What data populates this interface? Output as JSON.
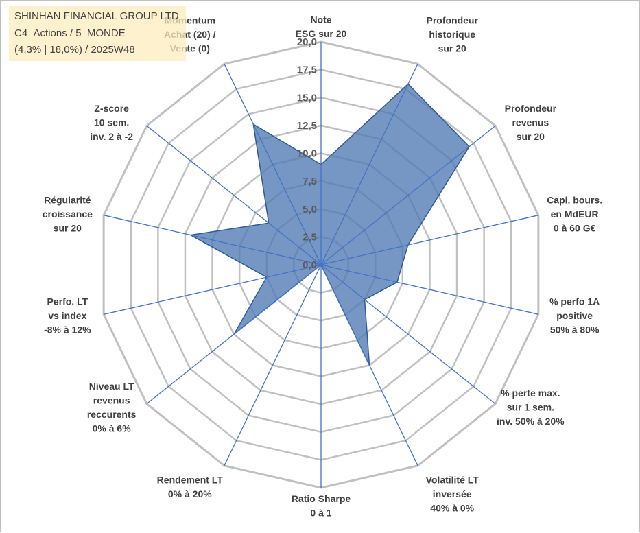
{
  "header": {
    "line1": "SHINHAN FINANCIAL GROUP LTD",
    "line2": "C4_Actions / 5_MONDE",
    "line3": "(4,3% | 18,0%) / 2025W48"
  },
  "colors": {
    "grid": "#c0c0c0",
    "spokes": "#4472c4",
    "fill": "#4f7ab3",
    "stroke": "#2e5a96",
    "label": "#404040",
    "tick": "#595959"
  },
  "chart_data": {
    "type": "radar",
    "title": "",
    "rmin": 0,
    "rmax": 20,
    "step": 2.5,
    "ticks": [
      "0,0",
      "2,5",
      "5,0",
      "7,5",
      "10,0",
      "12,5",
      "15,0",
      "17,5",
      "20,0"
    ],
    "axes": [
      {
        "lines": [
          "Note",
          "ESG sur 20"
        ],
        "value": 9.0
      },
      {
        "lines": [
          "Profondeur",
          "historique",
          "sur 20"
        ],
        "value": 18.0
      },
      {
        "lines": [
          "Profondeur",
          "revenus",
          "sur 20"
        ],
        "value": 17.0
      },
      {
        "lines": [
          "Capi. bours.",
          "en MdEUR",
          "0 à 60 G€"
        ],
        "value": 8.0
      },
      {
        "lines": [
          "% perfo 1A",
          "positive",
          "50% à 80%"
        ],
        "value": 7.0
      },
      {
        "lines": [
          "% perte max.",
          "sur 1 sem.",
          "inv. 50% à 20%"
        ],
        "value": 5.0
      },
      {
        "lines": [
          "Volatilité LT",
          "inversée",
          "40% à 0%"
        ],
        "value": 10.0
      },
      {
        "lines": [
          "Ratio Sharpe",
          "0 à 1"
        ],
        "value": 0.0
      },
      {
        "lines": [
          "Rendement LT",
          "0% à 20%"
        ],
        "value": 0.0
      },
      {
        "lines": [
          "Niveau LT",
          "revenus",
          "reccurents",
          "0% à 6%"
        ],
        "value": 10.0
      },
      {
        "lines": [
          "Perfo. LT",
          "vs index",
          "-8% à 12%"
        ],
        "value": 5.0
      },
      {
        "lines": [
          "Régularité",
          "croissance",
          "sur 20"
        ],
        "value": 12.0
      },
      {
        "lines": [
          "Z-score",
          "10 sem.",
          "inv. 2 à -2"
        ],
        "value": 6.0
      },
      {
        "lines": [
          "Momentum",
          "Achat (20) /",
          "Vente (0)"
        ],
        "value": 14.0
      }
    ]
  }
}
